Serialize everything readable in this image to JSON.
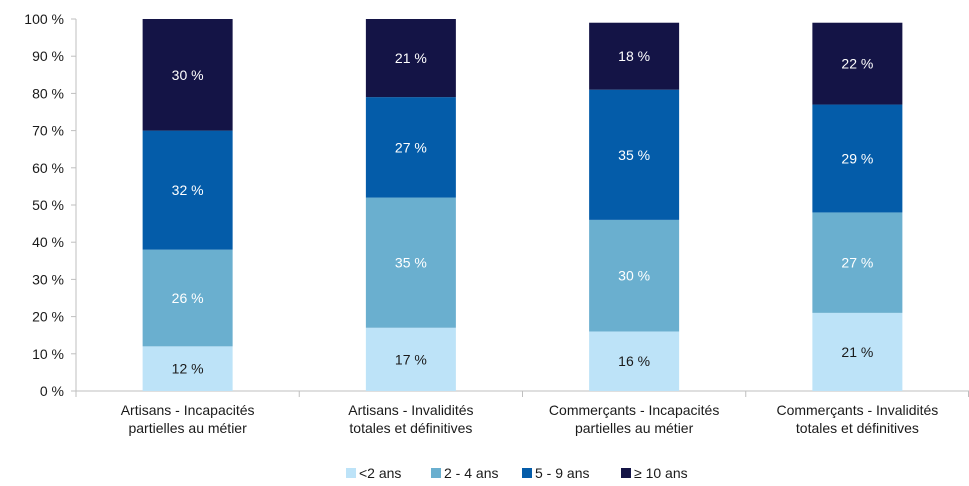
{
  "chart_data": {
    "type": "bar",
    "stacked": true,
    "categories": [
      [
        "Artisans - Incapacités",
        "partielles au métier"
      ],
      [
        "Artisans - Invalidités",
        "totales et définitives"
      ],
      [
        "Commerçants - Incapacités",
        "partielles au métier"
      ],
      [
        "Commerçants - Invalidités",
        "totales et définitives"
      ]
    ],
    "series": [
      {
        "name": "<2 ans",
        "color": "#bde3f8",
        "label_color": "#1a1a1a",
        "values": [
          12,
          17,
          16,
          21
        ],
        "labels": [
          "12 %",
          "17 %",
          "16 %",
          "21 %"
        ]
      },
      {
        "name": "2 - 4 ans",
        "color": "#6aafcf",
        "label_color": "#ffffff",
        "values": [
          26,
          35,
          30,
          27
        ],
        "labels": [
          "26 %",
          "35 %",
          "30 %",
          "27 %"
        ]
      },
      {
        "name": "5 - 9 ans",
        "color": "#045ca9",
        "label_color": "#ffffff",
        "values": [
          32,
          27,
          35,
          29
        ],
        "labels": [
          "32 %",
          "27 %",
          "35 %",
          "29 %"
        ]
      },
      {
        "name": "≥ 10 ans",
        "color": "#141446",
        "label_color": "#ffffff",
        "values": [
          30,
          21,
          18,
          22
        ],
        "labels": [
          "30 %",
          "21 %",
          "18 %",
          "22 %"
        ]
      }
    ],
    "y_ticks": [
      "0 %",
      "10 %",
      "20 %",
      "30 %",
      "40 %",
      "50 %",
      "60 %",
      "70 %",
      "80 %",
      "90 %",
      "100 %"
    ],
    "ylim": [
      0,
      100
    ],
    "grid": false,
    "legend_position": "bottom-center"
  }
}
